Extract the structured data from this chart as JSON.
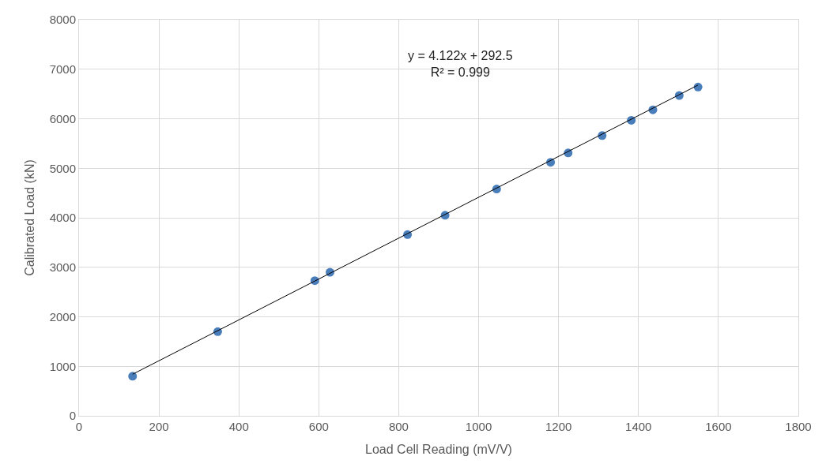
{
  "chart_data": {
    "type": "scatter",
    "xlabel": "Load Cell Reading (mV/V)",
    "ylabel": "Calibrated Load (kN)",
    "annotations": [
      "y = 4.122x + 292.5\nR² = 0.999"
    ],
    "xlim": [
      0,
      1800
    ],
    "xticks": [
      0,
      200,
      400,
      600,
      800,
      1000,
      1200,
      1400,
      1600,
      1800
    ],
    "ylim": [
      0,
      8000
    ],
    "yticks": [
      0,
      1000,
      2000,
      3000,
      4000,
      5000,
      6000,
      7000,
      8000
    ],
    "grid": true,
    "series": [
      {
        "color": "#4a7ebb",
        "marker": "circle",
        "x": [
          134,
          347,
          590,
          628,
          822,
          916,
          1045,
          1180,
          1224,
          1309,
          1382,
          1436,
          1502,
          1549
        ],
        "values": [
          800,
          1700,
          2730,
          2900,
          3660,
          4050,
          4580,
          5120,
          5310,
          5660,
          5970,
          6180,
          6470,
          6640
        ]
      },
      {
        "type": "line",
        "color": "#000000",
        "line_style": "solid",
        "x": [
          134,
          1549
        ],
        "values": [
          840,
          6680
        ]
      }
    ]
  }
}
